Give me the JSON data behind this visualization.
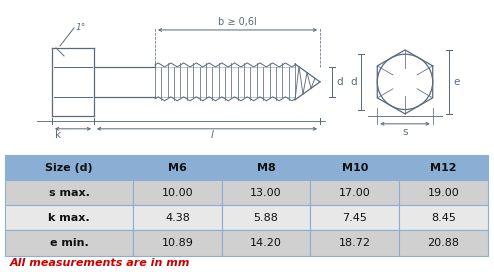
{
  "table_headers": [
    "Size (d)",
    "M6",
    "M8",
    "M10",
    "M12"
  ],
  "table_rows": [
    [
      "s max.",
      "10.00",
      "13.00",
      "17.00",
      "19.00"
    ],
    [
      "k max.",
      "4.38",
      "5.88",
      "7.45",
      "8.45"
    ],
    [
      "e min.",
      "10.89",
      "14.20",
      "18.72",
      "20.88"
    ]
  ],
  "footer_text": "All measurements are in mm",
  "footer_color": "#cc0000",
  "header_bg": "#8bafd4",
  "row_bg_odd": "#d0d0d0",
  "row_bg_even": "#e8e8e8",
  "border_color": "#8bafd4",
  "lc": "#5a6a7a",
  "bg_color": "#ffffff"
}
